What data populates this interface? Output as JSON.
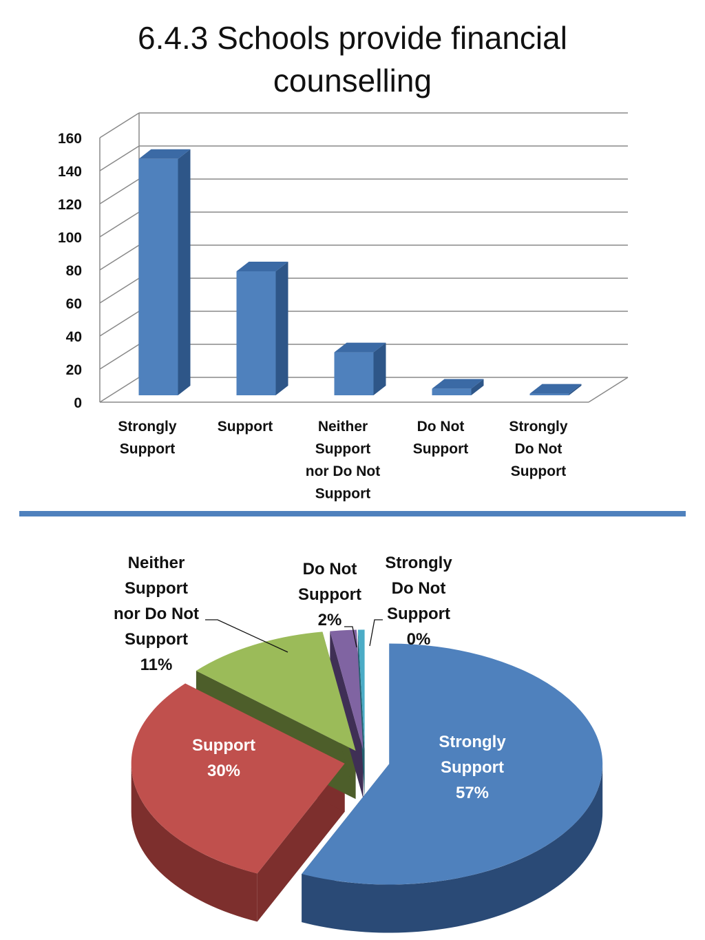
{
  "title": {
    "line1": "6.4.3  Schools provide financial",
    "line2": "counselling"
  },
  "chart_data": [
    {
      "type": "bar",
      "style": "3d-column",
      "categories": [
        [
          "Strongly",
          "Support"
        ],
        [
          "Support"
        ],
        [
          "Neither",
          "Support",
          "nor Do Not",
          "Support"
        ],
        [
          "Do Not",
          "Support"
        ],
        [
          "Strongly",
          "Do Not",
          "Support"
        ]
      ],
      "values": [
        143,
        75,
        26,
        4,
        1
      ],
      "ylim": [
        0,
        160
      ],
      "yticks": [
        0,
        20,
        40,
        60,
        80,
        100,
        120,
        140,
        160
      ],
      "grid": true,
      "colors": {
        "front": "#4f81bd",
        "side": "#2e5688",
        "top": "#3b6aa5"
      }
    },
    {
      "type": "pie",
      "style": "3d-exploded",
      "slices": [
        {
          "label": [
            "Strongly",
            "Support"
          ],
          "value": 57,
          "pct": "57%",
          "color": "#4f81bd",
          "dark": "#2a4a76"
        },
        {
          "label": [
            "Support"
          ],
          "value": 30,
          "pct": "30%",
          "color": "#c0504d",
          "dark": "#7d2f2d"
        },
        {
          "label": [
            "Neither",
            "Support",
            "nor Do Not",
            "Support"
          ],
          "value": 11,
          "pct": "11%",
          "color": "#9bbb59",
          "dark": "#4d5e2a"
        },
        {
          "label": [
            "Do Not",
            "Support"
          ],
          "value": 2,
          "pct": "2%",
          "color": "#8064a2",
          "dark": "#3f2f55"
        },
        {
          "label": [
            "Strongly",
            "Do Not",
            "Support"
          ],
          "value": 0.5,
          "pct": "0%",
          "color": "#4bacc6",
          "dark": "#23606f"
        }
      ]
    }
  ]
}
